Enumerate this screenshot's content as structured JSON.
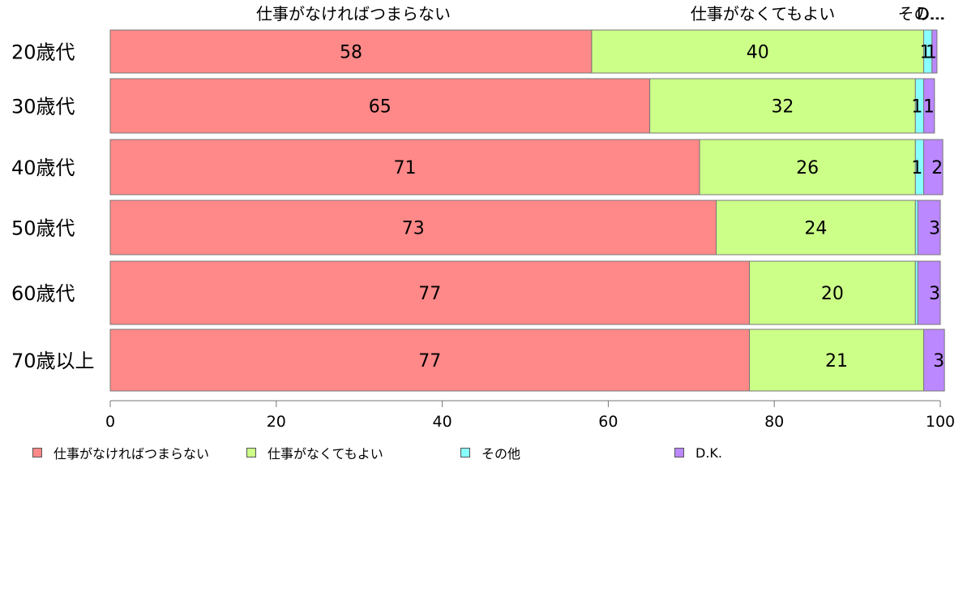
{
  "chart_data": {
    "type": "bar",
    "orientation": "horizontal",
    "stacked": true,
    "categories": [
      "20歳代",
      "30歳代",
      "40歳代",
      "50歳代",
      "60歳代",
      "70歳以上"
    ],
    "series": [
      {
        "name": "仕事がなければつまらない",
        "color": "#ff8888",
        "values": [
          58,
          65,
          71,
          73,
          77,
          77
        ],
        "labels": [
          "58",
          "65",
          "71",
          "73",
          "77",
          "77"
        ]
      },
      {
        "name": "仕事がなくてもよい",
        "color": "#ccff88",
        "values": [
          40,
          32,
          26,
          24,
          20,
          21
        ],
        "labels": [
          "40",
          "32",
          "26",
          "24",
          "20",
          "21"
        ]
      },
      {
        "name": "その他",
        "color": "#88ffff",
        "values": [
          1,
          1,
          1,
          0.3,
          0.3,
          0
        ],
        "labels": [
          "1",
          "1",
          "1",
          "",
          "",
          ""
        ]
      },
      {
        "name": "D.K.",
        "color": "#bb88ff",
        "values": [
          0.6,
          1.3,
          2.3,
          2.7,
          2.7,
          2.5
        ],
        "labels": [
          "1",
          "1",
          "2",
          "3",
          "3",
          "3"
        ]
      }
    ],
    "top_labels": [
      "仕事がなければつまらない",
      "仕事がなくてもよい",
      "その...",
      "D..."
    ],
    "xlim": [
      0,
      100
    ],
    "xticks": [
      "0",
      "20",
      "40",
      "60",
      "80",
      "100"
    ],
    "legend_position": "bottom",
    "grid": false
  }
}
